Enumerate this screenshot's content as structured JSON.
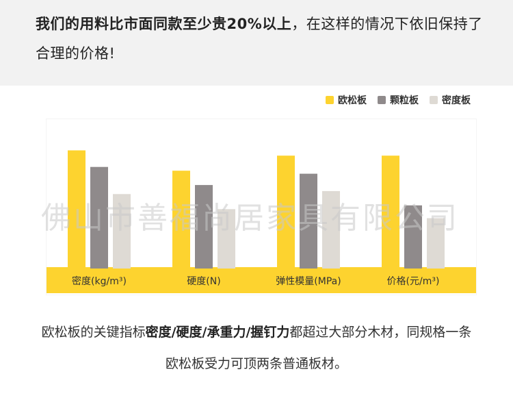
{
  "headline": {
    "bold": "我们的用料比市面同款至少贵20%以上",
    "rest": "，在这样的情况下依旧保持了合理的价格!"
  },
  "legend": [
    {
      "label": "欧松板",
      "color": "#FDD32F"
    },
    {
      "label": "颗粒板",
      "color": "#8F8A8B"
    },
    {
      "label": "密度板",
      "color": "#DEDAD4"
    }
  ],
  "chart_data": {
    "type": "bar",
    "categories": [
      "密度(kg/m³)",
      "硬度(N)",
      "弹性模量(MPa)",
      "价格(元/m³)"
    ],
    "series": [
      {
        "name": "欧松板",
        "values": [
          155,
          128,
          148,
          148
        ]
      },
      {
        "name": "颗粒板",
        "values": [
          133,
          109,
          124,
          82
        ]
      },
      {
        "name": "密度板",
        "values": [
          97,
          77,
          101,
          65
        ]
      }
    ],
    "ylim": [
      0,
      160
    ],
    "grid": false,
    "legend_position": "top-right",
    "colors": [
      "#FDD32F",
      "#8F8A8B",
      "#DEDAD4"
    ],
    "axis_band_color": "#FDD32F"
  },
  "watermark": "佛山市善福尚居家具有限公司",
  "caption": {
    "prefix": "欧松板的关键指标",
    "bold": "密度/硬度/承重力/握钉力",
    "suffix": "都超过大部分木材，同规格一条欧松板受力可顶两条普通板材。"
  }
}
